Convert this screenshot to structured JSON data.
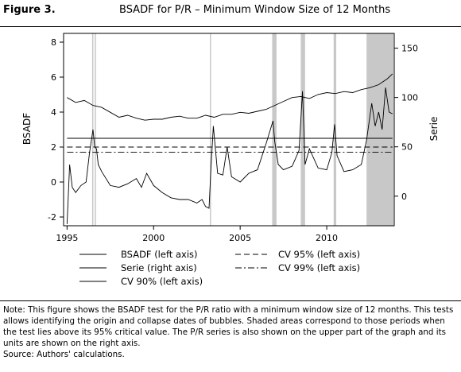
{
  "figure": {
    "label": "Figure 3.",
    "title": "BSADF for P/R – Minimum Window Size of 12 Months"
  },
  "chart_data": {
    "type": "line",
    "title": "BSADF for P/R – Minimum Window Size of 12 Months",
    "xlabel": "",
    "ylabel": "BSADF",
    "y2label": "Serie",
    "xlim": [
      1994.8,
      2013.9
    ],
    "ylim": [
      -2.5,
      8.5
    ],
    "y2lim": [
      -30,
      165
    ],
    "x_ticks": [
      1995,
      2000,
      2005,
      2010
    ],
    "y_ticks": [
      -2,
      0,
      2,
      4,
      6,
      8
    ],
    "y2_ticks": [
      0,
      50,
      100,
      150
    ],
    "grid": false,
    "legend_position": "bottom",
    "shaded_periods": [
      [
        1996.45,
        1996.52
      ],
      [
        1996.6,
        1996.66
      ],
      [
        2003.25,
        2003.3
      ],
      [
        2006.85,
        2007.1
      ],
      [
        2008.5,
        2008.75
      ],
      [
        2010.4,
        2010.55
      ],
      [
        2012.3,
        2013.85
      ]
    ],
    "series": [
      {
        "name": "BSADF (left axis)",
        "axis": "left",
        "style": "solid",
        "x": [
          1995.0,
          1995.15,
          1995.3,
          1995.5,
          1995.8,
          1996.1,
          1996.3,
          1996.5,
          1996.6,
          1996.7,
          1996.8,
          1997.0,
          1997.5,
          1998.0,
          1998.5,
          1999.0,
          1999.3,
          1999.6,
          2000.0,
          2000.5,
          2001.0,
          2001.5,
          2002.0,
          2002.5,
          2002.8,
          2003.0,
          2003.2,
          2003.3,
          2003.45,
          2003.7,
          2004.0,
          2004.25,
          2004.5,
          2005.0,
          2005.5,
          2006.0,
          2006.5,
          2006.9,
          2007.0,
          2007.2,
          2007.5,
          2008.0,
          2008.4,
          2008.6,
          2008.75,
          2009.0,
          2009.5,
          2010.0,
          2010.3,
          2010.45,
          2010.6,
          2011.0,
          2011.5,
          2012.0,
          2012.3,
          2012.6,
          2012.8,
          2013.0,
          2013.2,
          2013.4,
          2013.6,
          2013.8
        ],
        "y": [
          -2.4,
          1.0,
          -0.3,
          -0.6,
          -0.2,
          0.0,
          1.7,
          3.0,
          2.0,
          1.9,
          1.0,
          0.6,
          -0.2,
          -0.3,
          -0.1,
          0.2,
          -0.3,
          0.5,
          -0.2,
          -0.6,
          -0.9,
          -1.0,
          -1.0,
          -1.2,
          -1.0,
          -1.4,
          -1.5,
          0.5,
          3.2,
          0.5,
          0.4,
          2.0,
          0.3,
          0.0,
          0.5,
          0.7,
          2.2,
          3.5,
          2.3,
          1.0,
          0.7,
          0.9,
          1.8,
          5.2,
          1.0,
          1.9,
          0.8,
          0.7,
          1.7,
          3.3,
          1.5,
          0.6,
          0.7,
          1.0,
          2.4,
          4.5,
          3.2,
          4.0,
          3.0,
          5.4,
          4.0,
          3.9
        ]
      },
      {
        "name": "Serie (right axis)",
        "axis": "right",
        "style": "solid",
        "x": [
          1995.0,
          1995.5,
          1996.0,
          1996.5,
          1997.0,
          1997.5,
          1998.0,
          1998.5,
          1999.0,
          1999.5,
          2000.0,
          2000.5,
          2001.0,
          2001.5,
          2002.0,
          2002.5,
          2003.0,
          2003.5,
          2004.0,
          2004.5,
          2005.0,
          2005.5,
          2006.0,
          2006.5,
          2007.0,
          2007.5,
          2008.0,
          2008.5,
          2009.0,
          2009.5,
          2010.0,
          2010.5,
          2011.0,
          2011.5,
          2012.0,
          2012.5,
          2013.0,
          2013.5,
          2013.8
        ],
        "y": [
          100,
          95,
          97,
          92,
          90,
          85,
          80,
          82,
          79,
          77,
          78,
          78,
          80,
          81,
          79,
          79,
          82,
          80,
          83,
          83,
          85,
          84,
          86,
          88,
          92,
          96,
          100,
          101,
          99,
          103,
          105,
          104,
          106,
          105,
          108,
          110,
          113,
          119,
          124
        ]
      },
      {
        "name": "CV 90% (left axis)",
        "axis": "left",
        "style": "solid",
        "x": [
          1995.0,
          2013.8
        ],
        "y": [
          2.5,
          2.5
        ]
      },
      {
        "name": "CV 95% (left axis)",
        "axis": "left",
        "style": "dashed",
        "x": [
          1995.0,
          2013.8
        ],
        "y": [
          2.0,
          2.0
        ]
      },
      {
        "name": "CV 99% (left axis)",
        "axis": "left",
        "style": "dashdot",
        "x": [
          1995.0,
          2013.8
        ],
        "y": [
          1.7,
          1.7
        ]
      }
    ]
  },
  "legend": {
    "left": [
      "BSADF (left axis)",
      "Serie (right axis)",
      "CV 90% (left axis)"
    ],
    "right": [
      "CV 95% (left axis)",
      "CV 99% (left axis)"
    ]
  },
  "note": {
    "text": "Note: This figure shows the BSADF test for the P/R ratio with a minimum window size of 12 months. This tests allows identifying the origin and collapse dates of bubbles. Shaded areas correspond to those periods when the test lies above its 95% critical value. The P/R series is also shown on the upper part of the graph and its units are shown on the right axis.",
    "source": "Source: Authors' calculations."
  }
}
